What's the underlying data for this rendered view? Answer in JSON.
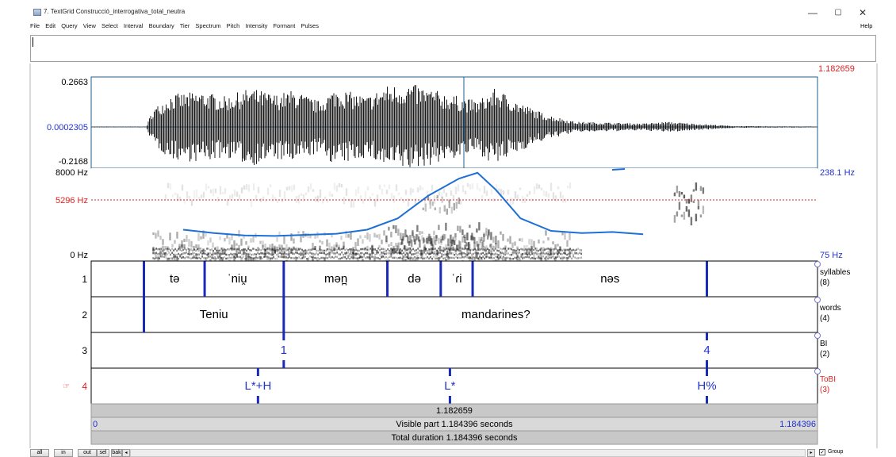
{
  "window": {
    "title": "7. TextGrid Construcció_interrogativa_total_neutra",
    "min_glyph": "—",
    "max_glyph": "▢",
    "close_glyph": "✕"
  },
  "menu": {
    "items": [
      "File",
      "Edit",
      "Query",
      "View",
      "Select",
      "Interval",
      "Boundary",
      "Tier",
      "Spectrum",
      "Pitch",
      "Intensity",
      "Formant",
      "Pulses"
    ],
    "help": "Help"
  },
  "cursor_time": "1.182659",
  "waveform": {
    "ymax": "0.2663",
    "zero": "0.0002305",
    "ymin": "-0.2168"
  },
  "spectrogram": {
    "fmax": "8000 Hz",
    "cursor_freq": "5296 Hz",
    "fmin": "0 Hz",
    "pitch_max": "238.1 Hz",
    "pitch_min": "75 Hz"
  },
  "tiers": [
    {
      "number": "1",
      "name": "syllables",
      "count": "(8)",
      "intervals": [
        {
          "text": "tə",
          "t": 0.136
        },
        {
          "text": "ˈniu̯",
          "t": 0.238
        },
        {
          "text": "mən̪",
          "t": 0.399
        },
        {
          "text": "də",
          "t": 0.527
        },
        {
          "text": "ˈɾi",
          "t": 0.596
        },
        {
          "text": "nəs",
          "t": 0.846
        }
      ],
      "boundaries": [
        0.086,
        0.185,
        0.314,
        0.483,
        0.57,
        0.622,
        1.004
      ]
    },
    {
      "number": "2",
      "name": "words",
      "count": "(4)",
      "intervals": [
        {
          "text": "Teniu",
          "t": 0.2
        },
        {
          "text": "mandarines?",
          "t": 0.66
        }
      ],
      "boundaries": [
        0.086,
        0.314
      ]
    },
    {
      "number": "3",
      "name": "BI",
      "count": "(2)",
      "points": [
        {
          "text": "1",
          "t": 0.314
        },
        {
          "text": "4",
          "t": 1.004
        }
      ]
    },
    {
      "number": "4",
      "name": "ToBI",
      "count": "(3)",
      "selected": true,
      "points": [
        {
          "text": "L*+H",
          "t": 0.272
        },
        {
          "text": "L*",
          "t": 0.585
        },
        {
          "text": "H%",
          "t": 1.004
        }
      ]
    }
  ],
  "time_bars": {
    "cursor": "1.182659",
    "visible_start": "0",
    "visible_end": "1.184396",
    "visible_part": "Visible part 1.184396 seconds",
    "total_duration": "Total duration 1.184396 seconds"
  },
  "pitch_contour_hz": [
    [
      0.15,
      130
    ],
    [
      0.2,
      124
    ],
    [
      0.25,
      120
    ],
    [
      0.3,
      119
    ],
    [
      0.35,
      121
    ],
    [
      0.4,
      123
    ],
    [
      0.45,
      130
    ],
    [
      0.5,
      150
    ],
    [
      0.55,
      190
    ],
    [
      0.6,
      220
    ],
    [
      0.63,
      230
    ],
    [
      0.66,
      200
    ],
    [
      0.7,
      150
    ],
    [
      0.75,
      128
    ],
    [
      0.8,
      124
    ],
    [
      0.85,
      126
    ],
    [
      0.9,
      122
    ]
  ],
  "buttons": {
    "all": "all",
    "in": "in",
    "out": "out",
    "sel": "sel",
    "bak": "bak",
    "group": "Group",
    "group_checked": "✓",
    "scroll_left": "◂",
    "scroll_right": "▸"
  },
  "colors": {
    "accent_blue": "#2233cc",
    "cursor_red": "#dd2222",
    "tier_boundary": "#1a2ab8",
    "pitch": "#1e6fd6"
  }
}
